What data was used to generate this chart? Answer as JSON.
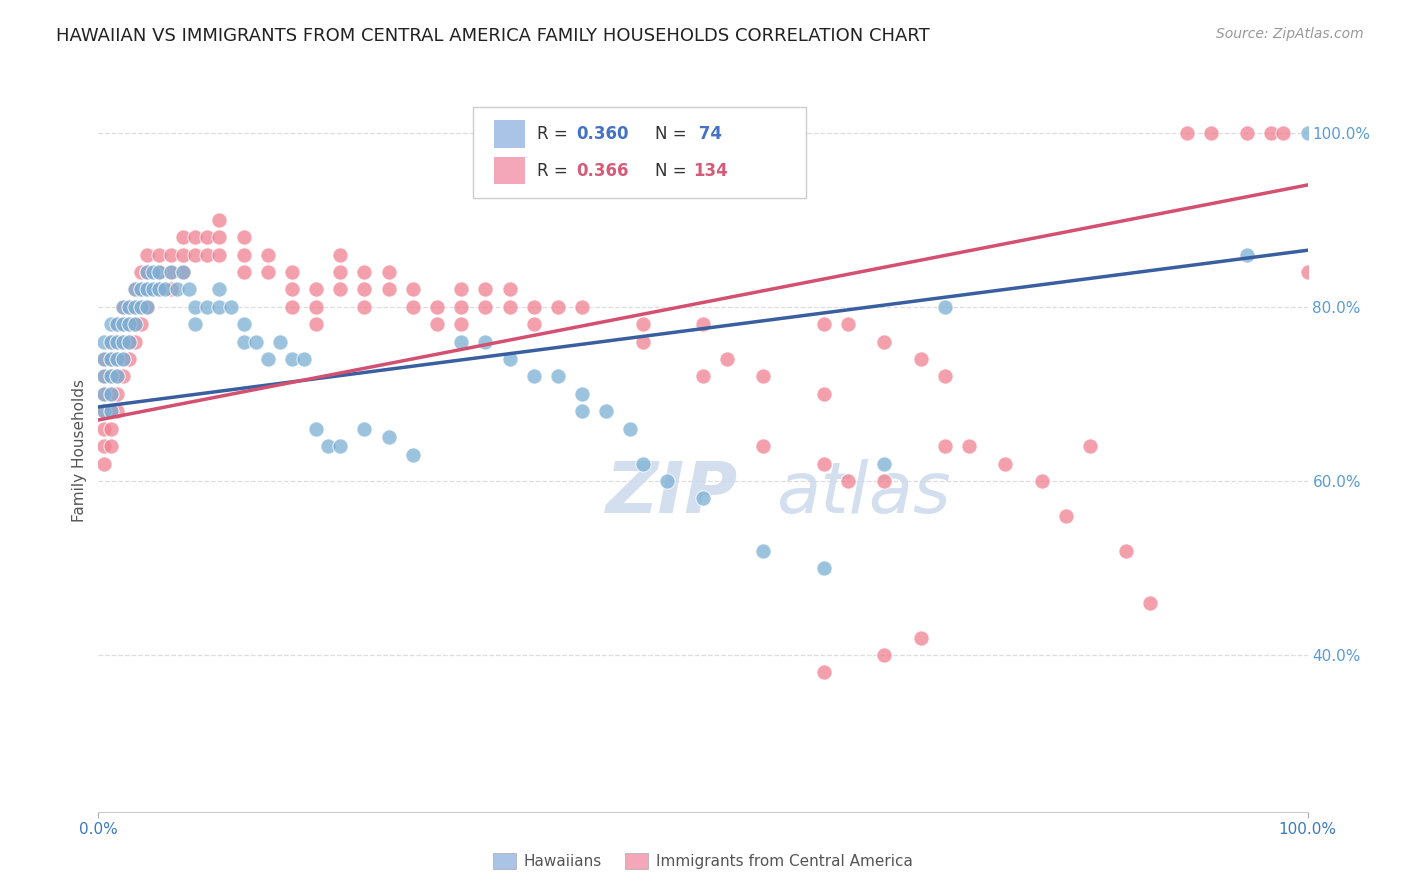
{
  "title": "HAWAIIAN VS IMMIGRANTS FROM CENTRAL AMERICA FAMILY HOUSEHOLDS CORRELATION CHART",
  "source": "Source: ZipAtlas.com",
  "ylabel": "Family Households",
  "legend_entries": [
    {
      "label": "Hawaiians",
      "R": "0.360",
      "N": "74",
      "dot_color": "#aac4e8",
      "text_color": "#4472c4"
    },
    {
      "label": "Immigrants from Central America",
      "R": "0.366",
      "N": "134",
      "dot_color": "#f4a7b9",
      "text_color": "#d45b7a"
    }
  ],
  "watermark_zip": "ZIP",
  "watermark_atlas": "atlas",
  "blue_scatter": [
    [
      0.005,
      0.76
    ],
    [
      0.005,
      0.74
    ],
    [
      0.005,
      0.72
    ],
    [
      0.005,
      0.7
    ],
    [
      0.005,
      0.68
    ],
    [
      0.01,
      0.78
    ],
    [
      0.01,
      0.76
    ],
    [
      0.01,
      0.74
    ],
    [
      0.01,
      0.72
    ],
    [
      0.01,
      0.7
    ],
    [
      0.01,
      0.68
    ],
    [
      0.015,
      0.78
    ],
    [
      0.015,
      0.76
    ],
    [
      0.015,
      0.74
    ],
    [
      0.015,
      0.72
    ],
    [
      0.02,
      0.8
    ],
    [
      0.02,
      0.78
    ],
    [
      0.02,
      0.76
    ],
    [
      0.02,
      0.74
    ],
    [
      0.025,
      0.8
    ],
    [
      0.025,
      0.78
    ],
    [
      0.025,
      0.76
    ],
    [
      0.03,
      0.82
    ],
    [
      0.03,
      0.8
    ],
    [
      0.03,
      0.78
    ],
    [
      0.035,
      0.82
    ],
    [
      0.035,
      0.8
    ],
    [
      0.04,
      0.84
    ],
    [
      0.04,
      0.82
    ],
    [
      0.04,
      0.8
    ],
    [
      0.045,
      0.84
    ],
    [
      0.045,
      0.82
    ],
    [
      0.05,
      0.84
    ],
    [
      0.05,
      0.82
    ],
    [
      0.055,
      0.82
    ],
    [
      0.06,
      0.84
    ],
    [
      0.065,
      0.82
    ],
    [
      0.07,
      0.84
    ],
    [
      0.075,
      0.82
    ],
    [
      0.08,
      0.8
    ],
    [
      0.08,
      0.78
    ],
    [
      0.09,
      0.8
    ],
    [
      0.1,
      0.82
    ],
    [
      0.1,
      0.8
    ],
    [
      0.11,
      0.8
    ],
    [
      0.12,
      0.78
    ],
    [
      0.12,
      0.76
    ],
    [
      0.13,
      0.76
    ],
    [
      0.14,
      0.74
    ],
    [
      0.15,
      0.76
    ],
    [
      0.16,
      0.74
    ],
    [
      0.17,
      0.74
    ],
    [
      0.18,
      0.66
    ],
    [
      0.19,
      0.64
    ],
    [
      0.2,
      0.64
    ],
    [
      0.22,
      0.66
    ],
    [
      0.24,
      0.65
    ],
    [
      0.26,
      0.63
    ],
    [
      0.3,
      0.76
    ],
    [
      0.32,
      0.76
    ],
    [
      0.34,
      0.74
    ],
    [
      0.36,
      0.72
    ],
    [
      0.38,
      0.72
    ],
    [
      0.4,
      0.7
    ],
    [
      0.4,
      0.68
    ],
    [
      0.42,
      0.68
    ],
    [
      0.44,
      0.66
    ],
    [
      0.45,
      0.62
    ],
    [
      0.47,
      0.6
    ],
    [
      0.5,
      0.58
    ],
    [
      0.55,
      0.52
    ],
    [
      0.6,
      0.5
    ],
    [
      0.65,
      0.62
    ],
    [
      0.7,
      0.8
    ],
    [
      0.95,
      0.86
    ],
    [
      1.0,
      1.0
    ]
  ],
  "pink_scatter": [
    [
      0.005,
      0.74
    ],
    [
      0.005,
      0.72
    ],
    [
      0.005,
      0.7
    ],
    [
      0.005,
      0.68
    ],
    [
      0.005,
      0.66
    ],
    [
      0.005,
      0.64
    ],
    [
      0.005,
      0.62
    ],
    [
      0.01,
      0.76
    ],
    [
      0.01,
      0.74
    ],
    [
      0.01,
      0.72
    ],
    [
      0.01,
      0.7
    ],
    [
      0.01,
      0.68
    ],
    [
      0.01,
      0.66
    ],
    [
      0.01,
      0.64
    ],
    [
      0.015,
      0.78
    ],
    [
      0.015,
      0.76
    ],
    [
      0.015,
      0.74
    ],
    [
      0.015,
      0.72
    ],
    [
      0.015,
      0.7
    ],
    [
      0.015,
      0.68
    ],
    [
      0.02,
      0.8
    ],
    [
      0.02,
      0.78
    ],
    [
      0.02,
      0.76
    ],
    [
      0.02,
      0.74
    ],
    [
      0.02,
      0.72
    ],
    [
      0.025,
      0.8
    ],
    [
      0.025,
      0.78
    ],
    [
      0.025,
      0.76
    ],
    [
      0.025,
      0.74
    ],
    [
      0.03,
      0.82
    ],
    [
      0.03,
      0.8
    ],
    [
      0.03,
      0.78
    ],
    [
      0.03,
      0.76
    ],
    [
      0.035,
      0.84
    ],
    [
      0.035,
      0.82
    ],
    [
      0.035,
      0.8
    ],
    [
      0.035,
      0.78
    ],
    [
      0.04,
      0.86
    ],
    [
      0.04,
      0.84
    ],
    [
      0.04,
      0.82
    ],
    [
      0.04,
      0.8
    ],
    [
      0.05,
      0.86
    ],
    [
      0.05,
      0.84
    ],
    [
      0.05,
      0.82
    ],
    [
      0.06,
      0.86
    ],
    [
      0.06,
      0.84
    ],
    [
      0.06,
      0.82
    ],
    [
      0.07,
      0.88
    ],
    [
      0.07,
      0.86
    ],
    [
      0.07,
      0.84
    ],
    [
      0.08,
      0.88
    ],
    [
      0.08,
      0.86
    ],
    [
      0.09,
      0.88
    ],
    [
      0.09,
      0.86
    ],
    [
      0.1,
      0.9
    ],
    [
      0.1,
      0.88
    ],
    [
      0.1,
      0.86
    ],
    [
      0.12,
      0.88
    ],
    [
      0.12,
      0.86
    ],
    [
      0.12,
      0.84
    ],
    [
      0.14,
      0.86
    ],
    [
      0.14,
      0.84
    ],
    [
      0.16,
      0.84
    ],
    [
      0.16,
      0.82
    ],
    [
      0.16,
      0.8
    ],
    [
      0.18,
      0.82
    ],
    [
      0.18,
      0.8
    ],
    [
      0.18,
      0.78
    ],
    [
      0.2,
      0.86
    ],
    [
      0.2,
      0.84
    ],
    [
      0.2,
      0.82
    ],
    [
      0.22,
      0.84
    ],
    [
      0.22,
      0.82
    ],
    [
      0.22,
      0.8
    ],
    [
      0.24,
      0.84
    ],
    [
      0.24,
      0.82
    ],
    [
      0.26,
      0.82
    ],
    [
      0.26,
      0.8
    ],
    [
      0.28,
      0.8
    ],
    [
      0.28,
      0.78
    ],
    [
      0.3,
      0.82
    ],
    [
      0.3,
      0.8
    ],
    [
      0.3,
      0.78
    ],
    [
      0.32,
      0.82
    ],
    [
      0.32,
      0.8
    ],
    [
      0.34,
      0.82
    ],
    [
      0.34,
      0.8
    ],
    [
      0.36,
      0.8
    ],
    [
      0.36,
      0.78
    ],
    [
      0.38,
      0.8
    ],
    [
      0.4,
      0.8
    ],
    [
      0.45,
      0.78
    ],
    [
      0.45,
      0.76
    ],
    [
      0.5,
      0.78
    ],
    [
      0.5,
      0.72
    ],
    [
      0.52,
      0.74
    ],
    [
      0.55,
      0.72
    ],
    [
      0.6,
      0.7
    ],
    [
      0.6,
      0.78
    ],
    [
      0.62,
      0.78
    ],
    [
      0.65,
      0.76
    ],
    [
      0.68,
      0.74
    ],
    [
      0.7,
      0.72
    ],
    [
      0.55,
      0.64
    ],
    [
      0.6,
      0.62
    ],
    [
      0.62,
      0.6
    ],
    [
      0.65,
      0.6
    ],
    [
      0.7,
      0.64
    ],
    [
      0.72,
      0.64
    ],
    [
      0.75,
      0.62
    ],
    [
      0.78,
      0.6
    ],
    [
      0.8,
      0.56
    ],
    [
      0.82,
      0.64
    ],
    [
      0.85,
      0.52
    ],
    [
      0.87,
      0.46
    ],
    [
      0.6,
      0.38
    ],
    [
      0.65,
      0.4
    ],
    [
      0.68,
      0.42
    ],
    [
      0.9,
      1.0
    ],
    [
      0.92,
      1.0
    ],
    [
      0.95,
      1.0
    ],
    [
      0.97,
      1.0
    ],
    [
      0.98,
      1.0
    ],
    [
      1.0,
      0.84
    ]
  ],
  "blue_line_x": [
    0.0,
    1.0
  ],
  "blue_line_y": [
    0.685,
    0.865
  ],
  "pink_line_x": [
    0.0,
    1.0
  ],
  "pink_line_y": [
    0.67,
    0.94
  ],
  "blue_dot_color": "#7bafd4",
  "pink_dot_color": "#f08090",
  "blue_line_color": "#3a5fa0",
  "pink_line_color": "#d45070",
  "bg_color": "#ffffff",
  "grid_color": "#dddddd",
  "title_fontsize": 13,
  "source_fontsize": 10,
  "ylabel_fontsize": 11,
  "right_ytick_color": "#5b9bd5",
  "xlim": [
    0.0,
    1.0
  ],
  "ylim": [
    0.22,
    1.05
  ],
  "right_ytick_vals": [
    0.4,
    0.6,
    0.8,
    1.0
  ],
  "right_ytick_labels": [
    "40.0%",
    "60.0%",
    "80.0%",
    "100.0%"
  ],
  "xtick_positions": [
    0.0,
    1.0
  ],
  "xtick_labels": [
    "0.0%",
    "100.0%"
  ]
}
